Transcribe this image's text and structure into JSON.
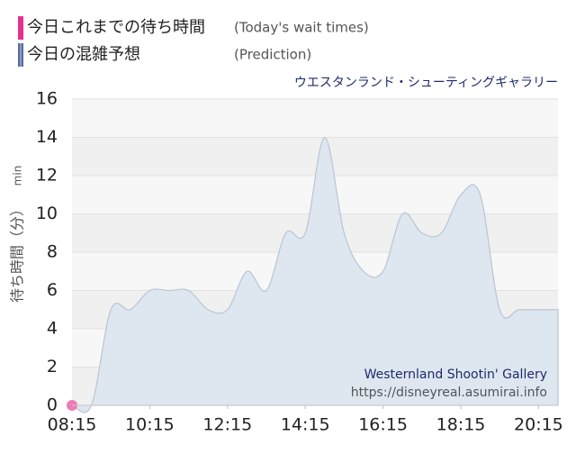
{
  "chart_data": {
    "type": "area",
    "title": "ウエスタンランド・シューティングギャラリー",
    "y_label": "待ち時間（分）",
    "y_unit": "min",
    "annotations": [
      "Westernland Shootin' Gallery",
      "https://disneyreal.asumirai.info"
    ],
    "series": [
      {
        "name": "今日これまでの待ち時間",
        "name_en": "(Today's wait times)",
        "color": "#f07ab8",
        "x": [
          "08:15"
        ],
        "values": [
          0
        ]
      },
      {
        "name": "今日の混雑予想",
        "name_en": "(Prediction)",
        "color": "#b8c6d3",
        "x": [
          "08:15",
          "08:45",
          "09:15",
          "09:45",
          "10:15",
          "10:45",
          "11:15",
          "11:45",
          "12:15",
          "12:45",
          "13:15",
          "13:45",
          "14:15",
          "14:45",
          "15:15",
          "15:45",
          "16:15",
          "16:45",
          "17:15",
          "17:45",
          "18:15",
          "18:45",
          "19:15",
          "19:45",
          "20:15",
          "20:45"
        ],
        "values": [
          0,
          0,
          5,
          5,
          6,
          6,
          6,
          5,
          5,
          7,
          6,
          9,
          9,
          14,
          9,
          7,
          7,
          10,
          9,
          9,
          11,
          11,
          5,
          5,
          5,
          5
        ]
      }
    ],
    "xlim": [
      "08:15",
      "20:45"
    ],
    "xticks": [
      "08:15",
      "10:15",
      "12:15",
      "14:15",
      "16:15",
      "18:15",
      "20:15"
    ],
    "ylim": [
      0,
      16
    ],
    "yticks": [
      0,
      2,
      4,
      6,
      8,
      10,
      12,
      14,
      16
    ],
    "grid": true
  }
}
